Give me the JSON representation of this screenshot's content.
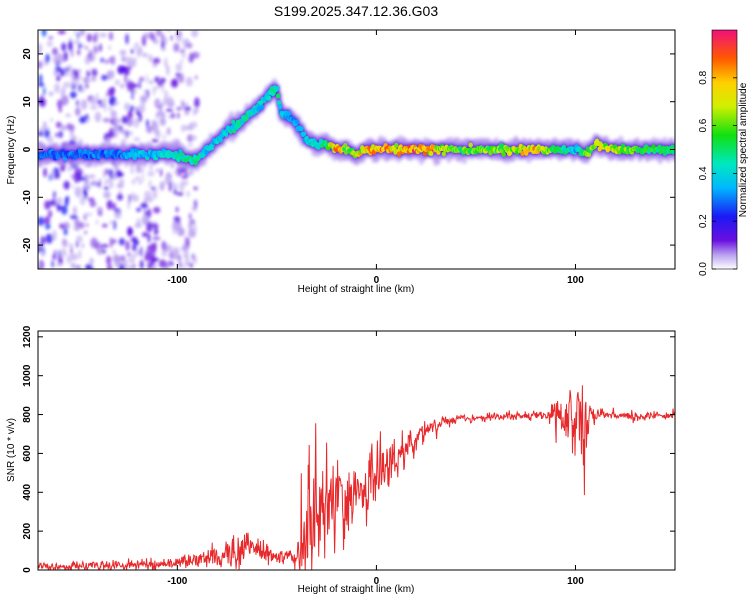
{
  "figure_title": "S199.2025.347.12.36.G03",
  "chart_data": [
    {
      "type": "heatmap",
      "title": "",
      "xlabel": "Height of straight line (km)",
      "ylabel": "Frequency (Hz)",
      "xlim": [
        -170,
        150
      ],
      "ylim": [
        -25,
        25
      ],
      "xticks": [
        -100,
        0,
        100
      ],
      "yticks": [
        -20,
        -10,
        0,
        10,
        20
      ],
      "colorbar": {
        "label": "Normalized spectral amplitude",
        "range": [
          0,
          1
        ],
        "ticks": [
          0.0,
          0.2,
          0.4,
          0.6,
          0.8
        ],
        "tick_labels": [
          "0.0",
          "0.2",
          "0.4",
          "0.6",
          "0.8"
        ]
      },
      "ridge": {
        "x": [
          -170,
          -160,
          -150,
          -140,
          -130,
          -120,
          -110,
          -100,
          -95,
          -90,
          -85,
          -80,
          -75,
          -70,
          -65,
          -60,
          -55,
          -50,
          -48,
          -45,
          -42,
          -40,
          -38,
          -35,
          -30,
          -25,
          -20,
          -15,
          -10,
          -5,
          0,
          10,
          20,
          40,
          60,
          80,
          90,
          95,
          100,
          105,
          110,
          120,
          130,
          150
        ],
        "frequency_hz": [
          -1,
          -1,
          -1,
          -1,
          -1,
          -1,
          -1,
          -1,
          -2,
          -2,
          0,
          2,
          4,
          5,
          7,
          9,
          11,
          13,
          8,
          7,
          6,
          5,
          4,
          2,
          1,
          1,
          0,
          0,
          -1,
          0,
          0,
          0,
          0,
          0,
          0,
          0,
          0,
          0,
          0,
          -1,
          1,
          0,
          0,
          0
        ],
        "peak_amplitude": [
          0.3,
          0.3,
          0.3,
          0.3,
          0.3,
          0.4,
          0.4,
          0.5,
          0.5,
          0.5,
          0.4,
          0.4,
          0.45,
          0.45,
          0.5,
          0.4,
          0.45,
          0.5,
          0.4,
          0.4,
          0.35,
          0.35,
          0.35,
          0.45,
          0.45,
          0.5,
          0.95,
          0.6,
          0.75,
          0.8,
          0.9,
          0.8,
          0.9,
          0.6,
          0.65,
          0.8,
          0.6,
          0.5,
          0.4,
          0.6,
          0.7,
          0.75,
          0.6,
          0.5
        ]
      },
      "noise_region_x": [
        -170,
        -90
      ]
    },
    {
      "type": "line",
      "title": "",
      "xlabel": "Height of straight line (km)",
      "ylabel": "SNR (10 * v/v)",
      "xlim": [
        -170,
        150
      ],
      "ylim": [
        0,
        1230
      ],
      "xticks": [
        -100,
        0,
        100
      ],
      "yticks": [
        0,
        200,
        400,
        600,
        800,
        1000,
        1200
      ],
      "series": [
        {
          "name": "SNR",
          "color": "#e8292b",
          "x": [
            -170,
            -150,
            -130,
            -110,
            -100,
            -90,
            -80,
            -70,
            -65,
            -60,
            -55,
            -50,
            -45,
            -40,
            -38,
            -35,
            -30,
            -25,
            -20,
            -15,
            -10,
            -5,
            0,
            5,
            10,
            15,
            20,
            25,
            30,
            35,
            40,
            50,
            60,
            70,
            80,
            85,
            88,
            90,
            92,
            95,
            97,
            100,
            102,
            104,
            106,
            108,
            110,
            115,
            120,
            130,
            140,
            150
          ],
          "y": [
            15,
            20,
            25,
            30,
            40,
            50,
            70,
            100,
            120,
            110,
            90,
            70,
            60,
            50,
            150,
            200,
            260,
            300,
            320,
            360,
            390,
            430,
            480,
            540,
            580,
            620,
            660,
            700,
            740,
            770,
            780,
            785,
            790,
            790,
            795,
            800,
            790,
            820,
            790,
            780,
            800,
            760,
            850,
            700,
            780,
            800,
            790,
            800,
            795,
            790,
            795,
            800
          ],
          "noise_std": [
            12,
            14,
            16,
            18,
            20,
            25,
            35,
            55,
            60,
            55,
            45,
            35,
            30,
            25,
            120,
            150,
            150,
            150,
            140,
            130,
            120,
            110,
            100,
            80,
            70,
            55,
            45,
            35,
            25,
            18,
            15,
            14,
            14,
            14,
            14,
            16,
            40,
            90,
            40,
            80,
            120,
            200,
            250,
            220,
            90,
            40,
            25,
            16,
            14,
            14,
            14,
            14
          ]
        }
      ]
    }
  ]
}
